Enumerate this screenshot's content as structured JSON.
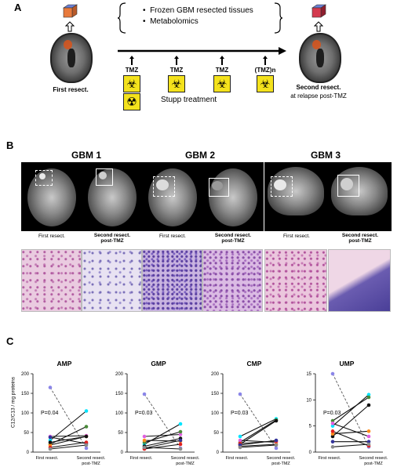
{
  "panel_labels": {
    "a": "A",
    "b": "B",
    "c": "C"
  },
  "panel_a": {
    "bullets": [
      "Frozen GBM resected tissues",
      "Metabolomics"
    ],
    "first_resect": "First resect.",
    "second_resect": "Second resect.",
    "second_resect_sub": "at relapse post-TMZ",
    "timeline_labels": [
      "TMZ",
      "TMZ",
      "TMZ",
      "(TMZ)n"
    ],
    "stupp": "Stupp treatment",
    "cube_colors": {
      "first": "#e87a3c",
      "second": "#d43a4e",
      "top": "#6b7fd4"
    }
  },
  "panel_b": {
    "titles": [
      "GBM 1",
      "GBM 2",
      "GBM 3"
    ],
    "first_caption": "First resect.",
    "second_caption_1": "Second resect.",
    "second_caption_2": "post-TMZ"
  },
  "chart_data": [
    {
      "type": "line",
      "title": "AMP",
      "ylabel": "C12/C13 / mg proteins",
      "ylim": [
        0,
        200
      ],
      "yticks": [
        0,
        50,
        100,
        150,
        200
      ],
      "categories": [
        "First resect.",
        "Second resect. post-TMZ"
      ],
      "annotation": "P=0.04",
      "series": [
        {
          "color": "#8a85e8",
          "dashed": true,
          "values": [
            165,
            10
          ]
        },
        {
          "color": "#00e5ff",
          "dashed": false,
          "values": [
            30,
            105
          ]
        },
        {
          "color": "#4a8a3a",
          "dashed": false,
          "values": [
            20,
            65
          ]
        },
        {
          "color": "#e060e0",
          "dashed": false,
          "values": [
            40,
            42
          ]
        },
        {
          "color": "#ff8c1a",
          "dashed": false,
          "values": [
            18,
            40
          ]
        },
        {
          "color": "#111111",
          "dashed": false,
          "values": [
            25,
            40
          ]
        },
        {
          "color": "#333399",
          "dashed": false,
          "values": [
            38,
            22
          ]
        },
        {
          "color": "#e02020",
          "dashed": false,
          "values": [
            12,
            25
          ]
        },
        {
          "color": "#8a8a8a",
          "dashed": false,
          "values": [
            8,
            18
          ]
        }
      ]
    },
    {
      "type": "line",
      "title": "GMP",
      "ylim": [
        0,
        200
      ],
      "yticks": [
        0,
        50,
        100,
        150,
        200
      ],
      "categories": [
        "First resect.",
        "Second resect. post-TMZ"
      ],
      "annotation": "P=0.03",
      "series": [
        {
          "color": "#8a85e8",
          "dashed": true,
          "values": [
            148,
            10
          ]
        },
        {
          "color": "#00e5ff",
          "dashed": false,
          "values": [
            20,
            72
          ]
        },
        {
          "color": "#e060e0",
          "dashed": false,
          "values": [
            40,
            45
          ]
        },
        {
          "color": "#4a8a3a",
          "dashed": false,
          "values": [
            25,
            52
          ]
        },
        {
          "color": "#111111",
          "dashed": false,
          "values": [
            15,
            35
          ]
        },
        {
          "color": "#ff8c1a",
          "dashed": false,
          "values": [
            30,
            28
          ]
        },
        {
          "color": "#333399",
          "dashed": false,
          "values": [
            10,
            30
          ]
        },
        {
          "color": "#e02020",
          "dashed": false,
          "values": [
            8,
            20
          ]
        },
        {
          "color": "#8a8a8a",
          "dashed": false,
          "values": [
            12,
            8
          ]
        }
      ]
    },
    {
      "type": "line",
      "title": "CMP",
      "ylim": [
        0,
        200
      ],
      "yticks": [
        0,
        50,
        100,
        150,
        200
      ],
      "categories": [
        "First resect.",
        "Second resect. post-TMZ"
      ],
      "annotation": "P=0.03",
      "series": [
        {
          "color": "#8a85e8",
          "dashed": true,
          "values": [
            148,
            10
          ]
        },
        {
          "color": "#00e5ff",
          "dashed": false,
          "values": [
            40,
            85
          ]
        },
        {
          "color": "#4a8a3a",
          "dashed": false,
          "values": [
            25,
            82
          ]
        },
        {
          "color": "#111111",
          "dashed": false,
          "values": [
            20,
            80
          ]
        },
        {
          "color": "#e060e0",
          "dashed": false,
          "values": [
            30,
            25
          ]
        },
        {
          "color": "#ff8c1a",
          "dashed": false,
          "values": [
            15,
            20
          ]
        },
        {
          "color": "#e02020",
          "dashed": false,
          "values": [
            22,
            28
          ]
        },
        {
          "color": "#333399",
          "dashed": false,
          "values": [
            18,
            30
          ]
        },
        {
          "color": "#8a8a8a",
          "dashed": false,
          "values": [
            12,
            18
          ]
        }
      ]
    },
    {
      "type": "line",
      "title": "UMP",
      "ylim": [
        0,
        15
      ],
      "yticks": [
        0,
        5,
        10,
        15
      ],
      "categories": [
        "First resect.",
        "Second resect. post-TMZ"
      ],
      "annotation": "P=0.03",
      "series": [
        {
          "color": "#8a85e8",
          "dashed": true,
          "values": [
            15,
            1
          ]
        },
        {
          "color": "#00e5ff",
          "dashed": false,
          "values": [
            5,
            11
          ]
        },
        {
          "color": "#4a8a3a",
          "dashed": false,
          "values": [
            6,
            10.5
          ]
        },
        {
          "color": "#111111",
          "dashed": false,
          "values": [
            3,
            9
          ]
        },
        {
          "color": "#e060e0",
          "dashed": false,
          "values": [
            5.5,
            3
          ]
        },
        {
          "color": "#ff8c1a",
          "dashed": false,
          "values": [
            3.5,
            4
          ]
        },
        {
          "color": "#e02020",
          "dashed": false,
          "values": [
            4,
            1.2
          ]
        },
        {
          "color": "#333399",
          "dashed": false,
          "values": [
            2,
            2
          ]
        },
        {
          "color": "#8a8a8a",
          "dashed": false,
          "values": [
            1,
            1.5
          ]
        }
      ]
    }
  ]
}
